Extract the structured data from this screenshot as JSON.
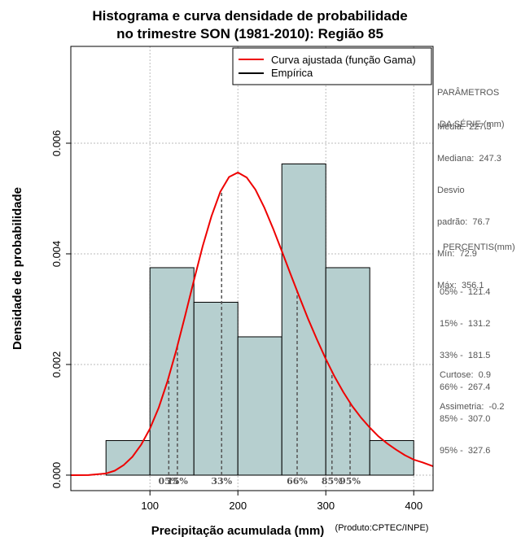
{
  "colors": {
    "bar_fill": "#b6cfcf",
    "fitted_curve": "#ee0000",
    "empirical": "#000000",
    "percentile_line": "#555555",
    "grid": "#bbbbbb",
    "side_text": "#555555"
  },
  "side_panel": {
    "params_heading": [
      "PARÂMETROS",
      " DA SÉRIE (mm)"
    ],
    "params": [
      "Média:  227.3",
      "Mediana:  247.3",
      "Desvio",
      "padrão:  76.7",
      "Mín:  72.9",
      "Máx:  356.1"
    ],
    "pct_heading": "PERCENTIS(mm)",
    "percentiles": [
      "05% -  121.4",
      "15% -  131.2",
      "33% -  181.5",
      "66% -  267.4",
      "85% -  307.0",
      "95% -  327.6"
    ],
    "stats": [
      "Curtose:  0.9",
      "Assimetria:  -0.2"
    ]
  },
  "chart_data": {
    "type": "bar",
    "title": [
      "Histograma e curva densidade de probabilidade",
      "no trimestre SON (1981-2010): Região 85"
    ],
    "xlabel": "Precipitação acumulada (mm)",
    "ylabel": "Densidade de probabilidade",
    "credit": "(Produto:CPTEC/INPE)",
    "xlim": [
      10,
      422
    ],
    "ylim": [
      -0.00028,
      0.00775
    ],
    "grid": true,
    "x_ticks": [
      100,
      200,
      300,
      400
    ],
    "x_tick_labels": [
      "100",
      "200",
      "300",
      "400"
    ],
    "y_ticks": [
      0.0,
      0.002,
      0.004,
      0.006
    ],
    "y_tick_labels": [
      "0.000",
      "0.002",
      "0.004",
      "0.006"
    ],
    "bins": [
      {
        "start": 50,
        "end": 100,
        "density": 0.000625
      },
      {
        "start": 100,
        "end": 150,
        "density": 0.00375
      },
      {
        "start": 150,
        "end": 200,
        "density": 0.003125
      },
      {
        "start": 200,
        "end": 250,
        "density": 0.0025
      },
      {
        "start": 250,
        "end": 300,
        "density": 0.005625
      },
      {
        "start": 300,
        "end": 350,
        "density": 0.00375
      },
      {
        "start": 350,
        "end": 400,
        "density": 0.000625
      }
    ],
    "fitted_curve": {
      "name": "Curva ajustada (função Gama)",
      "x": [
        10,
        30,
        50,
        60,
        70,
        80,
        90,
        100,
        110,
        120,
        130,
        140,
        150,
        160,
        170,
        180,
        190,
        200,
        210,
        220,
        230,
        240,
        250,
        260,
        270,
        280,
        290,
        300,
        310,
        320,
        330,
        340,
        350,
        360,
        370,
        380,
        390,
        400,
        410,
        422
      ],
      "y": [
        0.0,
        1e-06,
        3e-05,
        8e-05,
        0.00018,
        0.00033,
        0.00055,
        0.00084,
        0.00122,
        0.0017,
        0.00226,
        0.00288,
        0.00352,
        0.00414,
        0.00468,
        0.00512,
        0.00539,
        0.00547,
        0.00538,
        0.00516,
        0.00484,
        0.00446,
        0.00405,
        0.00363,
        0.00322,
        0.00282,
        0.00245,
        0.0021,
        0.00178,
        0.0015,
        0.00125,
        0.00104,
        0.00086,
        0.0007,
        0.00057,
        0.00046,
        0.00036,
        0.00028,
        0.00023,
        0.00016
      ]
    },
    "empirical": {
      "name": "Empírica"
    },
    "percentiles": [
      {
        "label": "05%",
        "value": 121.4
      },
      {
        "label": "15%",
        "value": 131.2
      },
      {
        "label": "33%",
        "value": 181.5
      },
      {
        "label": "66%",
        "value": 267.4
      },
      {
        "label": "85%",
        "value": 307.0
      },
      {
        "label": "95%",
        "value": 327.6
      }
    ]
  }
}
